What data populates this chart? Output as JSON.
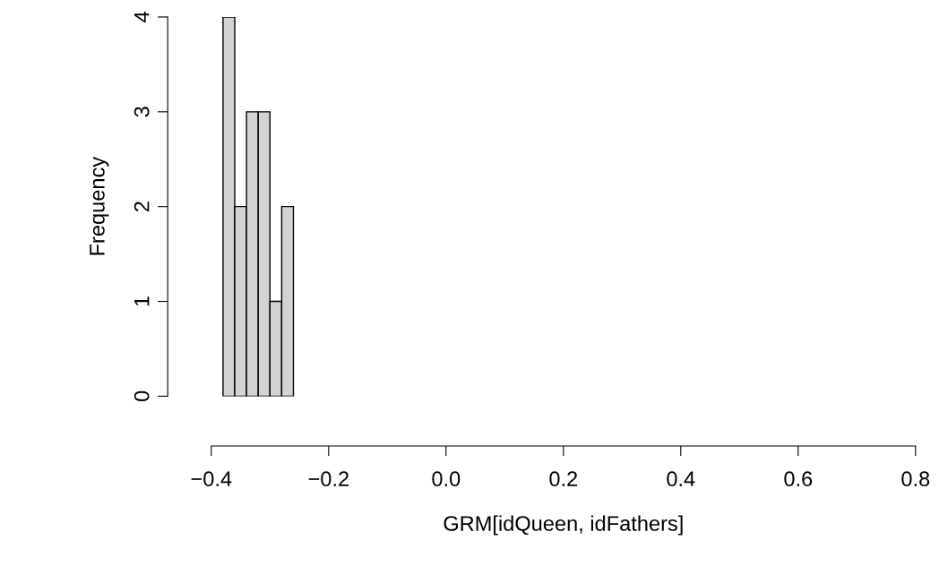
{
  "chart_data": {
    "type": "histogram",
    "xlabel": "GRM[idQueen, idFathers]",
    "ylabel": "Frequency",
    "bins": [
      -0.38,
      -0.36,
      -0.34,
      -0.32,
      -0.3,
      -0.28,
      -0.26
    ],
    "values": [
      4,
      2,
      3,
      3,
      1,
      2
    ],
    "color": "#d3d3d3",
    "xlim": [
      -0.4,
      0.8
    ],
    "xticks": [
      {
        "value": -0.4,
        "label": "−0.4"
      },
      {
        "value": -0.2,
        "label": "−0.2"
      },
      {
        "value": 0.0,
        "label": "0.0"
      },
      0.2,
      0.4,
      0.6,
      0.8
    ],
    "ylim": [
      0,
      4
    ],
    "yticks": [
      0,
      1,
      2,
      3,
      4
    ],
    "grid": false
  }
}
